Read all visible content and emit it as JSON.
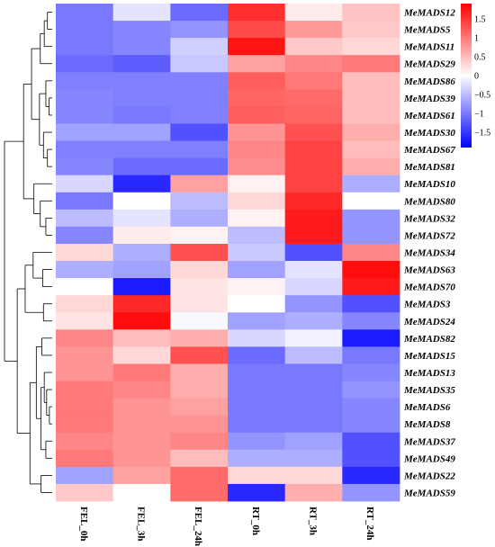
{
  "chart_data": {
    "type": "heatmap",
    "columns": [
      "FEL_0h",
      "FEL_3h",
      "FEL_24h",
      "RT_0h",
      "RT_3h",
      "RT_24h"
    ],
    "rows": [
      {
        "gene": "MeMADS12",
        "values": [
          -1.0,
          -0.2,
          -1.1,
          1.55,
          0.15,
          0.45
        ]
      },
      {
        "gene": "MeMADS5",
        "values": [
          -1.0,
          -0.9,
          -0.8,
          1.35,
          0.75,
          0.4
        ]
      },
      {
        "gene": "MeMADS11",
        "values": [
          -1.0,
          -0.9,
          -0.35,
          1.75,
          0.4,
          0.3
        ]
      },
      {
        "gene": "MeMADS29",
        "values": [
          -1.1,
          -1.2,
          -0.4,
          0.7,
          0.9,
          1.0
        ]
      },
      {
        "gene": "MeMADS86",
        "values": [
          -0.95,
          -0.95,
          -0.95,
          1.2,
          1.0,
          0.5
        ]
      },
      {
        "gene": "MeMADS39",
        "values": [
          -0.9,
          -0.95,
          -0.95,
          1.15,
          1.1,
          0.5
        ]
      },
      {
        "gene": "MeMADS61",
        "values": [
          -0.9,
          -1.0,
          -0.95,
          1.2,
          1.15,
          0.5
        ]
      },
      {
        "gene": "MeMADS30",
        "values": [
          -0.7,
          -0.7,
          -1.3,
          0.8,
          1.3,
          0.6
        ]
      },
      {
        "gene": "MeMADS67",
        "values": [
          -0.95,
          -0.95,
          -0.95,
          0.9,
          1.4,
          0.5
        ]
      },
      {
        "gene": "MeMADS81",
        "values": [
          -0.9,
          -1.1,
          -1.1,
          0.85,
          1.4,
          0.6
        ]
      },
      {
        "gene": "MeMADS10",
        "values": [
          -0.3,
          -1.6,
          0.7,
          0.1,
          1.4,
          -0.6
        ]
      },
      {
        "gene": "MeMADS80",
        "values": [
          -1.0,
          0.0,
          -0.5,
          0.3,
          1.6,
          0.0
        ]
      },
      {
        "gene": "MeMADS32",
        "values": [
          -0.5,
          -0.2,
          -0.6,
          0.1,
          1.7,
          -0.8
        ]
      },
      {
        "gene": "MeMADS72",
        "values": [
          -0.9,
          0.15,
          0.1,
          -0.5,
          1.7,
          -0.8
        ]
      },
      {
        "gene": "MeMADS34",
        "values": [
          0.3,
          -0.6,
          1.3,
          -0.4,
          -1.3,
          0.9
        ]
      },
      {
        "gene": "MeMADS63",
        "values": [
          -0.6,
          -0.7,
          0.3,
          -0.7,
          -0.2,
          1.8
        ]
      },
      {
        "gene": "MeMADS70",
        "values": [
          0.0,
          -1.7,
          0.2,
          0.1,
          -0.3,
          1.7
        ]
      },
      {
        "gene": "MeMADS3",
        "values": [
          0.3,
          1.6,
          0.2,
          0.0,
          -0.8,
          -1.3
        ]
      },
      {
        "gene": "MeMADS24",
        "values": [
          0.2,
          1.8,
          -0.05,
          -0.7,
          -0.6,
          -0.9
        ]
      },
      {
        "gene": "MeMADS82",
        "values": [
          0.9,
          0.5,
          0.6,
          -0.3,
          -0.1,
          -1.7
        ]
      },
      {
        "gene": "MeMADS15",
        "values": [
          0.8,
          0.3,
          1.3,
          -1.1,
          -0.5,
          -1.0
        ]
      },
      {
        "gene": "MeMADS13",
        "values": [
          0.8,
          1.0,
          0.6,
          -1.0,
          -1.0,
          -0.9
        ]
      },
      {
        "gene": "MeMADS35",
        "values": [
          1.0,
          0.9,
          0.6,
          -1.0,
          -1.0,
          -0.8
        ]
      },
      {
        "gene": "MeMADS6",
        "values": [
          1.0,
          0.8,
          0.7,
          -1.0,
          -1.0,
          -0.9
        ]
      },
      {
        "gene": "MeMADS8",
        "values": [
          1.0,
          0.8,
          0.8,
          -1.0,
          -1.0,
          -0.9
        ]
      },
      {
        "gene": "MeMADS37",
        "values": [
          0.9,
          0.8,
          0.9,
          -0.8,
          -0.7,
          -1.3
        ]
      },
      {
        "gene": "MeMADS49",
        "values": [
          1.0,
          0.8,
          0.5,
          -0.6,
          -0.6,
          -1.3
        ]
      },
      {
        "gene": "MeMADS22",
        "values": [
          -0.7,
          0.7,
          1.1,
          0.3,
          0.3,
          -1.6
        ]
      },
      {
        "gene": "MeMADS59",
        "values": [
          0.4,
          0.0,
          1.1,
          -1.6,
          0.6,
          -0.8
        ]
      }
    ],
    "color_scale": {
      "min": -1.9,
      "max": 1.9,
      "low_color": "#0000ff",
      "mid_color": "#ffffff",
      "high_color": "#ff0000",
      "ticks": [
        1.5,
        1,
        0.5,
        0,
        -0.5,
        -1,
        -1.5
      ],
      "tick_labels": [
        "1.5",
        "1",
        "0.5",
        "0",
        "−0.5",
        "−1",
        "−1.5"
      ]
    },
    "row_dendrogram": true,
    "legend_placement": "top-right"
  }
}
